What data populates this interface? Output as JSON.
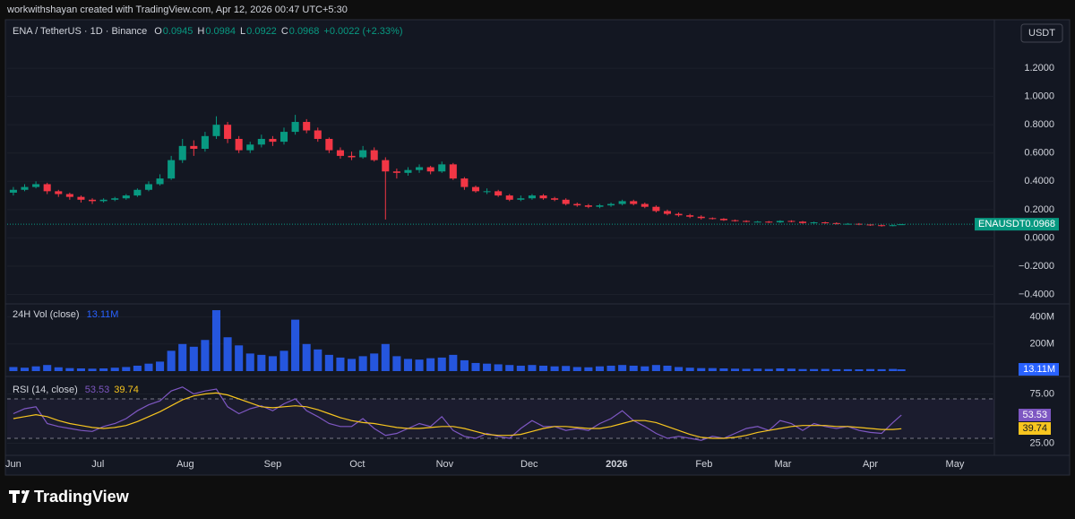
{
  "header": {
    "caption": "workwithshayan created with TradingView.com, Apr 12, 2026 00:47 UTC+5:30",
    "currency": "USDT"
  },
  "chart_data": [
    {
      "type": "candlestick",
      "title": "ENA / TetherUS · 1D · Binance",
      "legend_keys": [
        "O",
        "H",
        "L",
        "C"
      ],
      "change_label": "+0.0022 (+2.33%)",
      "symbol": "ENAUSDT",
      "color_up": "#089981",
      "color_down": "#f23645",
      "grid": true,
      "xlim": [
        -2.2,
        348
      ],
      "x": [
        0,
        4,
        8,
        12,
        16,
        20,
        24,
        28,
        32,
        36,
        40,
        44,
        48,
        52,
        56,
        60,
        64,
        68,
        72,
        76,
        80,
        84,
        88,
        92,
        96,
        100,
        104,
        108,
        112,
        116,
        120,
        124,
        128,
        132,
        136,
        140,
        144,
        148,
        152,
        156,
        160,
        164,
        168,
        172,
        176,
        180,
        184,
        188,
        192,
        196,
        200,
        204,
        208,
        212,
        216,
        220,
        224,
        228,
        232,
        236,
        240,
        244,
        248,
        252,
        256,
        260,
        264,
        268,
        272,
        276,
        280,
        284,
        288,
        292,
        296,
        300,
        304,
        308,
        312,
        315
      ],
      "open": [
        0.32,
        0.34,
        0.36,
        0.38,
        0.33,
        0.31,
        0.29,
        0.27,
        0.26,
        0.27,
        0.28,
        0.3,
        0.34,
        0.38,
        0.42,
        0.55,
        0.65,
        0.63,
        0.72,
        0.8,
        0.7,
        0.62,
        0.66,
        0.7,
        0.68,
        0.75,
        0.82,
        0.76,
        0.7,
        0.62,
        0.58,
        0.57,
        0.62,
        0.55,
        0.47,
        0.46,
        0.48,
        0.5,
        0.47,
        0.52,
        0.42,
        0.36,
        0.33,
        0.33,
        0.3,
        0.27,
        0.28,
        0.3,
        0.28,
        0.27,
        0.24,
        0.23,
        0.22,
        0.23,
        0.24,
        0.26,
        0.24,
        0.22,
        0.19,
        0.17,
        0.16,
        0.15,
        0.14,
        0.135,
        0.125,
        0.12,
        0.115,
        0.115,
        0.11,
        0.12,
        0.115,
        0.105,
        0.11,
        0.105,
        0.1,
        0.1,
        0.095,
        0.09,
        0.085,
        0.0945
      ],
      "high": [
        0.36,
        0.38,
        0.4,
        0.39,
        0.34,
        0.32,
        0.3,
        0.28,
        0.28,
        0.29,
        0.31,
        0.35,
        0.4,
        0.45,
        0.58,
        0.7,
        0.69,
        0.75,
        0.86,
        0.82,
        0.72,
        0.68,
        0.73,
        0.72,
        0.78,
        0.87,
        0.84,
        0.78,
        0.71,
        0.64,
        0.61,
        0.65,
        0.64,
        0.57,
        0.49,
        0.5,
        0.52,
        0.51,
        0.54,
        0.53,
        0.43,
        0.37,
        0.35,
        0.34,
        0.31,
        0.3,
        0.31,
        0.31,
        0.29,
        0.28,
        0.25,
        0.24,
        0.24,
        0.25,
        0.27,
        0.27,
        0.25,
        0.23,
        0.2,
        0.18,
        0.17,
        0.16,
        0.145,
        0.14,
        0.13,
        0.125,
        0.12,
        0.12,
        0.125,
        0.125,
        0.12,
        0.115,
        0.115,
        0.11,
        0.105,
        0.105,
        0.1,
        0.095,
        0.095,
        0.0984
      ],
      "low": [
        0.3,
        0.33,
        0.35,
        0.31,
        0.29,
        0.27,
        0.25,
        0.24,
        0.25,
        0.26,
        0.27,
        0.29,
        0.33,
        0.37,
        0.41,
        0.53,
        0.58,
        0.61,
        0.7,
        0.67,
        0.6,
        0.6,
        0.64,
        0.65,
        0.66,
        0.73,
        0.74,
        0.68,
        0.6,
        0.56,
        0.55,
        0.56,
        0.54,
        0.13,
        0.42,
        0.44,
        0.46,
        0.45,
        0.46,
        0.41,
        0.34,
        0.32,
        0.31,
        0.29,
        0.26,
        0.26,
        0.27,
        0.27,
        0.26,
        0.23,
        0.22,
        0.21,
        0.21,
        0.22,
        0.23,
        0.23,
        0.21,
        0.18,
        0.16,
        0.15,
        0.14,
        0.13,
        0.13,
        0.12,
        0.115,
        0.11,
        0.11,
        0.105,
        0.105,
        0.11,
        0.1,
        0.1,
        0.1,
        0.095,
        0.095,
        0.09,
        0.085,
        0.08,
        0.082,
        0.0922
      ],
      "close": [
        0.34,
        0.36,
        0.38,
        0.33,
        0.31,
        0.29,
        0.27,
        0.26,
        0.27,
        0.28,
        0.3,
        0.34,
        0.38,
        0.42,
        0.55,
        0.65,
        0.63,
        0.72,
        0.8,
        0.7,
        0.62,
        0.66,
        0.7,
        0.68,
        0.75,
        0.82,
        0.76,
        0.7,
        0.62,
        0.58,
        0.57,
        0.62,
        0.55,
        0.47,
        0.46,
        0.48,
        0.5,
        0.47,
        0.52,
        0.42,
        0.36,
        0.33,
        0.33,
        0.3,
        0.27,
        0.28,
        0.3,
        0.28,
        0.27,
        0.24,
        0.23,
        0.22,
        0.23,
        0.24,
        0.26,
        0.24,
        0.22,
        0.19,
        0.17,
        0.16,
        0.15,
        0.14,
        0.135,
        0.125,
        0.12,
        0.115,
        0.115,
        0.11,
        0.12,
        0.115,
        0.105,
        0.11,
        0.105,
        0.1,
        0.1,
        0.095,
        0.09,
        0.085,
        0.09,
        0.0968
      ],
      "ylim": [
        -0.46,
        1.53
      ],
      "yticks": [
        {
          "value": -0.4,
          "label": "−0.4000"
        },
        {
          "value": -0.2,
          "label": "−0.2000"
        },
        {
          "value": 0,
          "label": "0.0000"
        },
        {
          "value": 0.2,
          "label": "0.2000"
        },
        {
          "value": 0.4,
          "label": "0.4000"
        },
        {
          "value": 0.6,
          "label": "0.6000"
        },
        {
          "value": 0.8,
          "label": "0.8000"
        },
        {
          "value": 1,
          "label": "1.0000"
        },
        {
          "value": 1.2,
          "label": "1.2000"
        }
      ]
    },
    {
      "type": "bar",
      "title": "24H Vol (close)",
      "last_value_label": "13.11M",
      "color": "#2962ff",
      "grid": true,
      "xlim": [
        -2.2,
        348
      ],
      "x": [
        0,
        4,
        8,
        12,
        16,
        20,
        24,
        28,
        32,
        36,
        40,
        44,
        48,
        52,
        56,
        60,
        64,
        68,
        72,
        76,
        80,
        84,
        88,
        92,
        96,
        100,
        104,
        108,
        112,
        116,
        120,
        124,
        128,
        132,
        136,
        140,
        144,
        148,
        152,
        156,
        160,
        164,
        168,
        172,
        176,
        180,
        184,
        188,
        192,
        196,
        200,
        204,
        208,
        212,
        216,
        220,
        224,
        228,
        232,
        236,
        240,
        244,
        248,
        252,
        256,
        260,
        264,
        268,
        272,
        276,
        280,
        284,
        288,
        292,
        296,
        300,
        304,
        308,
        312,
        315
      ],
      "values": [
        30,
        25,
        35,
        45,
        28,
        22,
        20,
        18,
        20,
        25,
        30,
        40,
        55,
        70,
        150,
        200,
        180,
        230,
        450,
        250,
        190,
        130,
        120,
        110,
        150,
        380,
        200,
        160,
        120,
        100,
        90,
        110,
        130,
        200,
        110,
        90,
        85,
        95,
        100,
        120,
        80,
        60,
        55,
        50,
        45,
        40,
        45,
        40,
        35,
        38,
        30,
        28,
        35,
        40,
        45,
        40,
        35,
        45,
        40,
        30,
        25,
        22,
        22,
        20,
        18,
        17,
        18,
        16,
        20,
        18,
        15,
        15,
        16,
        14,
        14,
        13,
        15,
        14,
        16,
        13.11
      ],
      "ylim": [
        0,
        490
      ],
      "yticks": [
        {
          "value": 200,
          "label": "200M"
        },
        {
          "value": 400,
          "label": "400M"
        }
      ]
    },
    {
      "type": "line",
      "title": "RSI (14, close)",
      "grid": true,
      "bands": [
        30,
        70
      ],
      "xlim": [
        -2.2,
        348
      ],
      "x": [
        0,
        4,
        8,
        12,
        16,
        20,
        24,
        28,
        32,
        36,
        40,
        44,
        48,
        52,
        56,
        60,
        64,
        68,
        72,
        76,
        80,
        84,
        88,
        92,
        96,
        100,
        104,
        108,
        112,
        116,
        120,
        124,
        128,
        132,
        136,
        140,
        144,
        148,
        152,
        156,
        160,
        164,
        168,
        172,
        176,
        180,
        184,
        188,
        192,
        196,
        200,
        204,
        208,
        212,
        216,
        220,
        224,
        228,
        232,
        236,
        240,
        244,
        248,
        252,
        256,
        260,
        264,
        268,
        272,
        276,
        280,
        284,
        288,
        292,
        296,
        300,
        304,
        308,
        312,
        315
      ],
      "series": [
        {
          "color": "#7e57c2",
          "values": [
            55,
            60,
            62,
            45,
            42,
            40,
            38,
            37,
            42,
            45,
            50,
            58,
            64,
            68,
            78,
            82,
            75,
            78,
            80,
            62,
            55,
            60,
            63,
            58,
            65,
            70,
            58,
            52,
            45,
            42,
            42,
            50,
            40,
            33,
            35,
            40,
            45,
            42,
            52,
            38,
            32,
            30,
            35,
            32,
            30,
            40,
            48,
            42,
            42,
            38,
            40,
            38,
            45,
            50,
            58,
            48,
            42,
            35,
            30,
            32,
            30,
            28,
            32,
            30,
            35,
            40,
            42,
            38,
            48,
            45,
            38,
            45,
            42,
            40,
            42,
            38,
            36,
            35,
            46,
            53.53
          ]
        },
        {
          "color": "#f7c51f",
          "values": [
            50,
            52,
            54,
            52,
            48,
            45,
            43,
            41,
            40,
            41,
            43,
            47,
            52,
            57,
            63,
            69,
            73,
            75,
            76,
            74,
            70,
            66,
            62,
            61,
            62,
            63,
            62,
            59,
            55,
            51,
            48,
            46,
            45,
            43,
            41,
            40,
            40,
            41,
            42,
            42,
            40,
            37,
            34,
            33,
            33,
            34,
            37,
            40,
            42,
            42,
            41,
            40,
            40,
            42,
            45,
            48,
            48,
            46,
            42,
            38,
            34,
            31,
            30,
            30,
            31,
            33,
            36,
            38,
            40,
            42,
            43,
            43,
            43,
            42,
            42,
            41,
            40,
            39,
            39,
            39.74
          ]
        }
      ],
      "ylim": [
        12.7,
        89.1
      ],
      "yticks": [
        {
          "value": 25,
          "label": "25.00"
        },
        {
          "value": 75,
          "label": "75.00"
        }
      ],
      "xticks": [
        {
          "value": 0,
          "label": "Jun"
        },
        {
          "value": 30,
          "label": "Jul"
        },
        {
          "value": 61,
          "label": "Aug"
        },
        {
          "value": 92,
          "label": "Sep"
        },
        {
          "value": 122,
          "label": "Oct"
        },
        {
          "value": 153,
          "label": "Nov"
        },
        {
          "value": 183,
          "label": "Dec"
        },
        {
          "value": 214,
          "label": "2026"
        },
        {
          "value": 245,
          "label": "Feb"
        },
        {
          "value": 273,
          "label": "Mar"
        },
        {
          "value": 304,
          "label": "Apr"
        },
        {
          "value": 334,
          "label": "May"
        }
      ]
    }
  ],
  "footer": {
    "brand": "TradingView"
  }
}
